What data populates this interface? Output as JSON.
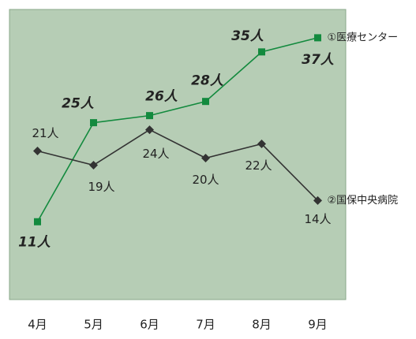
{
  "chart_data": {
    "type": "line",
    "categories": [
      "4月",
      "5月",
      "6月",
      "7月",
      "8月",
      "9月"
    ],
    "ylim": [
      0,
      41
    ],
    "series": [
      {
        "name": "①医療センター",
        "color": "#138a3e",
        "marker": "square",
        "values": [
          11,
          25,
          26,
          28,
          35,
          37
        ],
        "value_labels": [
          "11人",
          "25人",
          "26人",
          "28人",
          "35人",
          "37人"
        ]
      },
      {
        "name": "②国保中央病院",
        "color": "#333333",
        "marker": "diamond",
        "values": [
          21,
          19,
          24,
          20,
          22,
          14
        ],
        "value_labels": [
          "21人",
          "19人",
          "24人",
          "20人",
          "22人",
          "14人"
        ]
      }
    ],
    "background": "#b6cdb5"
  }
}
